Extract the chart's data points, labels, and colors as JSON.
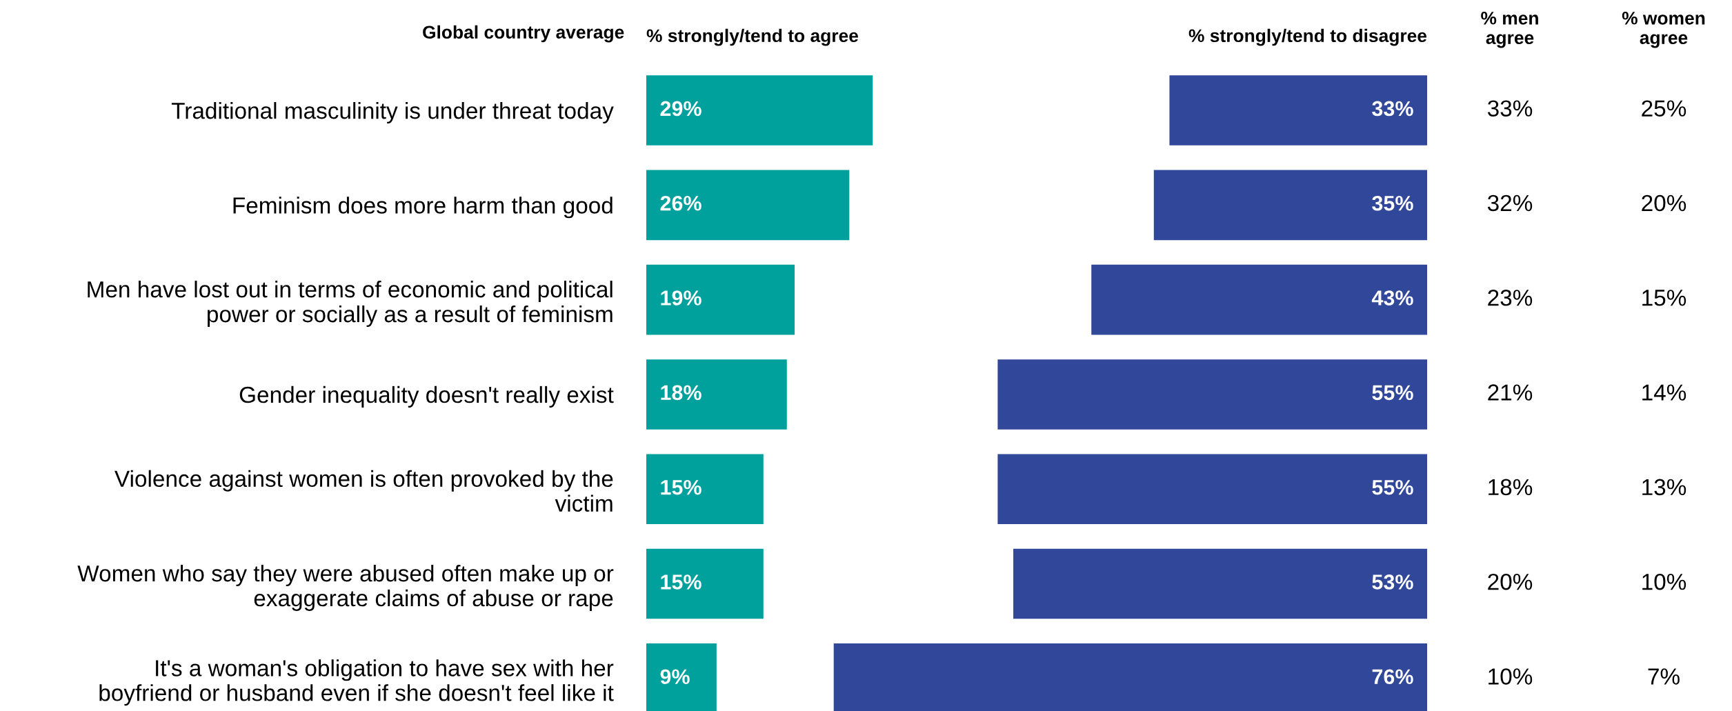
{
  "chart_data": [
    {
      "type": "bar",
      "orientation": "horizontal",
      "title": "% strongly/tend to agree",
      "ylabel": "Global country average",
      "categories": [
        "Traditional masculinity is under threat today",
        "Feminism does more harm than good",
        "Men have lost out in terms of economic and political\npower or socially as a result of feminism",
        "Gender inequality doesn't really exist",
        "Violence against women is often provoked by the\nvictim",
        "Women who say they were abused often make up or\nexaggerate claims of abuse or rape",
        "It's a woman's obligation to have sex with her\nboyfriend or husband even if she doesn't feel like it"
      ],
      "values": [
        29,
        26,
        19,
        18,
        15,
        15,
        9
      ],
      "value_labels": [
        "29%",
        "26%",
        "19%",
        "18%",
        "15%",
        "15%",
        "9%"
      ],
      "color": "#00a09d",
      "tick_labels": "y",
      "grid": false,
      "legend": false
    },
    {
      "type": "bar",
      "orientation": "horizontal",
      "title": "% strongly/tend to disagree",
      "categories": [
        null,
        null,
        null,
        null,
        null,
        null,
        null
      ],
      "values": [
        33,
        35,
        43,
        55,
        55,
        53,
        76
      ],
      "value_labels": [
        "33%",
        "35%",
        "43%",
        "55%",
        "55%",
        "53%",
        "76%"
      ],
      "color": "#30479a",
      "tick_labels": false,
      "grid": false,
      "legend": false
    },
    {
      "type": "other",
      "title": "% men\nagree",
      "values": [
        33,
        32,
        23,
        21,
        18,
        20,
        10
      ],
      "value_labels": [
        "33%",
        "32%",
        "23%",
        "21%",
        "18%",
        "20%",
        "10%"
      ]
    },
    {
      "type": "other",
      "title": "% women\nagree",
      "values": [
        25,
        20,
        15,
        14,
        13,
        10,
        7
      ],
      "value_labels": [
        "25%",
        "20%",
        "15%",
        "14%",
        "13%",
        "10%",
        "7%"
      ]
    }
  ]
}
